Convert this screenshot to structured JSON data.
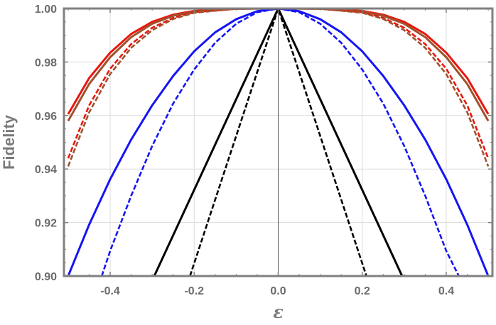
{
  "chart_data": {
    "type": "line",
    "xlabel": "ε",
    "ylabel": "Fidelity",
    "xlim": [
      -0.51,
      0.51
    ],
    "ylim": [
      0.9,
      1.0
    ],
    "grid": true,
    "x_ticks": [
      -0.4,
      -0.2,
      0.0,
      0.2,
      0.4
    ],
    "x_tick_labels": [
      "-0.4",
      "-0.2",
      "0.0",
      "0.2",
      "0.4"
    ],
    "y_ticks": [
      0.9,
      0.92,
      0.94,
      0.96,
      0.98,
      1.0
    ],
    "y_tick_labels": [
      "0.90",
      "0.92",
      "0.94",
      "0.96",
      "0.98",
      "1.00"
    ],
    "series": [
      {
        "color": "#e8170f",
        "style": "solid",
        "x": [
          -0.5,
          -0.45,
          -0.4,
          -0.35,
          -0.3,
          -0.25,
          -0.2,
          -0.1,
          0.0,
          0.1,
          0.2,
          0.25,
          0.3,
          0.35,
          0.4,
          0.45,
          0.5
        ],
        "y": [
          0.9605,
          0.974,
          0.9835,
          0.9905,
          0.995,
          0.9977,
          0.9991,
          0.99995,
          1.0,
          0.99995,
          0.9991,
          0.9977,
          0.995,
          0.9905,
          0.9835,
          0.974,
          0.9605
        ]
      },
      {
        "color": "#a0522d",
        "style": "solid",
        "x": [
          -0.5,
          -0.45,
          -0.4,
          -0.35,
          -0.3,
          -0.25,
          -0.2,
          -0.1,
          0.0,
          0.1,
          0.2,
          0.25,
          0.3,
          0.35,
          0.4,
          0.45,
          0.5
        ],
        "y": [
          0.958,
          0.9718,
          0.9818,
          0.9893,
          0.9943,
          0.9973,
          0.9989,
          0.9999,
          1.0,
          0.9999,
          0.9989,
          0.9973,
          0.9943,
          0.9893,
          0.9818,
          0.9718,
          0.958
        ]
      },
      {
        "color": "#e8170f",
        "style": "dashed",
        "x": [
          -0.5,
          -0.45,
          -0.4,
          -0.35,
          -0.3,
          -0.25,
          -0.2,
          -0.1,
          0.0,
          0.1,
          0.2,
          0.25,
          0.3,
          0.35,
          0.4,
          0.45,
          0.5
        ],
        "y": [
          0.944,
          0.9638,
          0.9775,
          0.9867,
          0.9928,
          0.9965,
          0.9986,
          0.9999,
          1.0,
          0.9999,
          0.9986,
          0.9965,
          0.9928,
          0.9867,
          0.9775,
          0.9638,
          0.944
        ]
      },
      {
        "color": "#a0522d",
        "style": "dashed",
        "x": [
          -0.5,
          -0.45,
          -0.4,
          -0.35,
          -0.3,
          -0.25,
          -0.2,
          -0.1,
          0.0,
          0.1,
          0.2,
          0.25,
          0.3,
          0.35,
          0.4,
          0.45,
          0.5
        ],
        "y": [
          0.941,
          0.9612,
          0.9755,
          0.9853,
          0.9919,
          0.9961,
          0.9984,
          0.9999,
          1.0,
          0.9999,
          0.9984,
          0.9961,
          0.9919,
          0.9853,
          0.9755,
          0.9612,
          0.941
        ]
      },
      {
        "color": "#1515f5",
        "style": "solid",
        "x": [
          -0.5,
          -0.45,
          -0.4,
          -0.35,
          -0.3,
          -0.25,
          -0.2,
          -0.15,
          -0.1,
          -0.05,
          0.0,
          0.05,
          0.1,
          0.15,
          0.2,
          0.25,
          0.3,
          0.35,
          0.4,
          0.45,
          0.5
        ],
        "y": [
          0.9,
          0.9192,
          0.9362,
          0.951,
          0.9638,
          0.9748,
          0.984,
          0.9911,
          0.996,
          0.999,
          1.0,
          0.999,
          0.996,
          0.9911,
          0.984,
          0.9748,
          0.9638,
          0.951,
          0.9362,
          0.9192,
          0.9
        ]
      },
      {
        "color": "#1515f5",
        "style": "dashed",
        "x": [
          -0.42,
          -0.4,
          -0.35,
          -0.3,
          -0.25,
          -0.2,
          -0.15,
          -0.1,
          -0.05,
          0.0,
          0.05,
          0.1,
          0.15,
          0.2,
          0.25,
          0.3,
          0.35,
          0.4,
          0.43
        ],
        "y": [
          0.9,
          0.9094,
          0.93,
          0.9486,
          0.9645,
          0.9772,
          0.9872,
          0.9943,
          0.9986,
          1.0,
          0.9986,
          0.9943,
          0.9872,
          0.9772,
          0.9645,
          0.9486,
          0.93,
          0.9094,
          0.9
        ]
      },
      {
        "color": "#000000",
        "style": "solid",
        "x": [
          -0.295,
          0.0,
          0.295
        ],
        "y": [
          0.9,
          1.0,
          0.9
        ]
      },
      {
        "color": "#000000",
        "style": "dashed",
        "x": [
          -0.21,
          0.0,
          0.21
        ],
        "y": [
          0.9,
          1.0,
          0.9
        ]
      }
    ]
  }
}
